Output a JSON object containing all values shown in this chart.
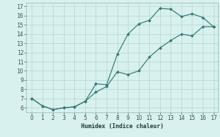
{
  "title": "",
  "xlabel": "Humidex (Indice chaleur)",
  "upper_x": [
    0,
    1,
    2,
    3,
    4,
    5,
    6,
    7,
    8,
    9,
    10,
    11,
    12,
    13,
    14,
    15,
    16,
    17
  ],
  "upper_y": [
    7.0,
    6.2,
    5.8,
    6.0,
    6.1,
    6.7,
    8.6,
    8.5,
    11.8,
    14.0,
    15.1,
    15.5,
    16.8,
    16.7,
    15.9,
    16.2,
    15.8,
    14.8
  ],
  "lower_x": [
    0,
    1,
    2,
    3,
    4,
    5,
    6,
    7,
    8,
    9,
    10,
    11,
    12,
    13,
    14,
    15,
    16,
    17
  ],
  "lower_y": [
    7.0,
    6.2,
    5.8,
    6.0,
    6.1,
    6.7,
    7.7,
    8.3,
    9.9,
    9.6,
    10.0,
    11.5,
    12.5,
    13.3,
    14.0,
    13.8,
    14.8,
    14.8
  ],
  "line_color": "#2d7d78",
  "bg_color": "#d8f0ee",
  "grid_color": "#b8d8d4",
  "xlim": [
    -0.5,
    17.4
  ],
  "ylim": [
    5.5,
    17.4
  ],
  "xticks": [
    0,
    1,
    2,
    3,
    4,
    5,
    6,
    7,
    8,
    9,
    10,
    11,
    12,
    13,
    14,
    15,
    16,
    17
  ],
  "yticks": [
    6,
    7,
    8,
    9,
    10,
    11,
    12,
    13,
    14,
    15,
    16,
    17
  ]
}
